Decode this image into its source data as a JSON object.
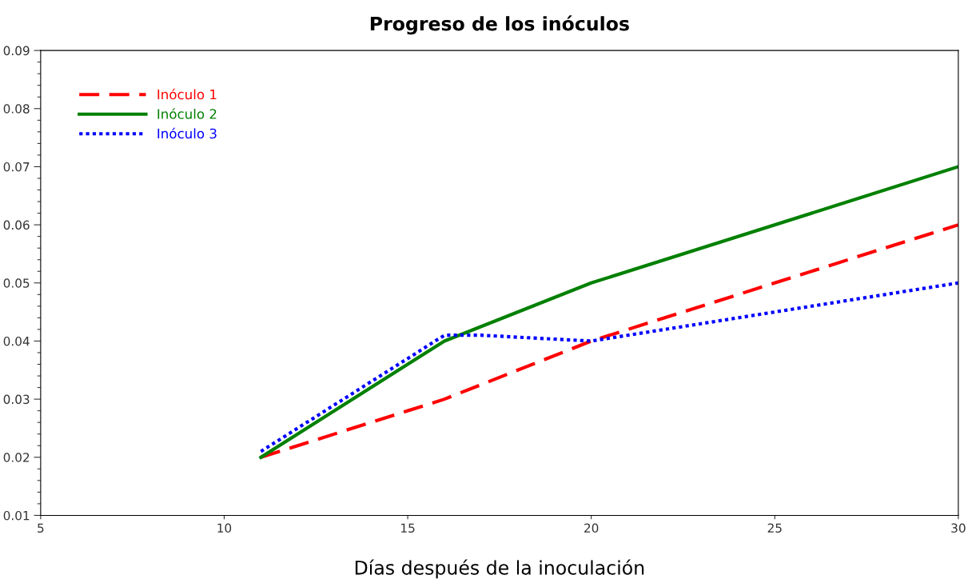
{
  "chart_data": {
    "type": "line",
    "title": "Progreso de los inóculos",
    "xlabel": "Días después de la inoculación",
    "xlim": [
      5,
      30
    ],
    "xticks": [
      5,
      10,
      15,
      20,
      25,
      30
    ],
    "ylim": [
      0.01,
      0.09
    ],
    "yticks": [
      0.01,
      0.02,
      0.03,
      0.04,
      0.05,
      0.06,
      0.07,
      0.08,
      0.09
    ],
    "grid": false,
    "legend": "top left",
    "marker": "none",
    "series": [
      {
        "name": "Inóculo 1",
        "color": "#ff0000",
        "line_style": "dashed",
        "x": [
          11,
          16,
          20,
          30
        ],
        "values": [
          0.02,
          0.03,
          0.04,
          0.06
        ]
      },
      {
        "name": "Inóculo 2",
        "color": "#008000",
        "line_style": "solid",
        "x": [
          11,
          16,
          20,
          30
        ],
        "values": [
          0.02,
          0.04,
          0.05,
          0.07
        ]
      },
      {
        "name": "Inóculo 3",
        "color": "#0000ff",
        "line_style": "dotted",
        "x": [
          11,
          16,
          17,
          20,
          25,
          30
        ],
        "values": [
          0.021,
          0.041,
          0.041,
          0.04,
          0.045,
          0.05
        ]
      }
    ]
  }
}
